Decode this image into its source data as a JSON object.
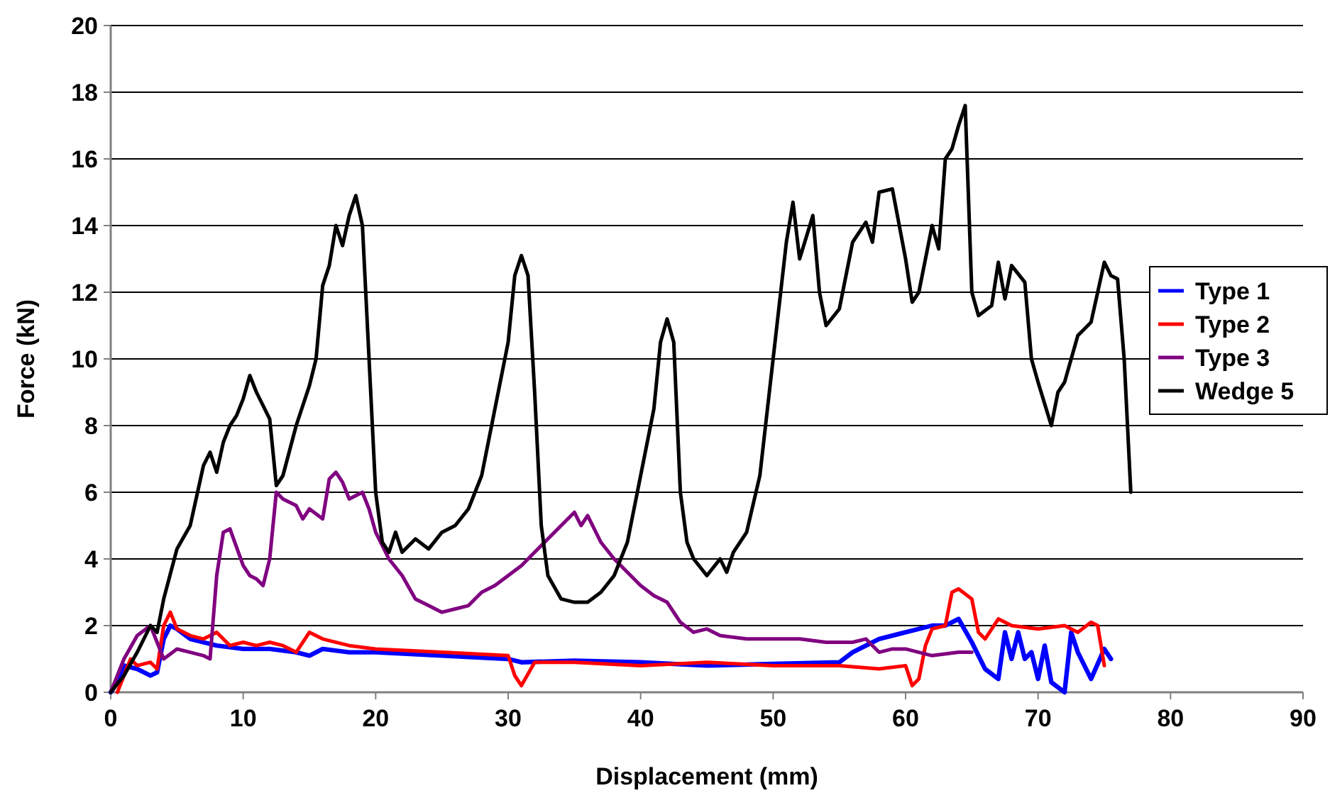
{
  "chart_data": {
    "type": "line",
    "xlabel": "Displacement (mm)",
    "ylabel": "Force (kN)",
    "xlim": [
      0,
      90
    ],
    "ylim": [
      0,
      20
    ],
    "xticks": [
      0,
      10,
      20,
      30,
      40,
      50,
      60,
      70,
      80,
      90
    ],
    "yticks": [
      0,
      2,
      4,
      6,
      8,
      10,
      12,
      14,
      16,
      18,
      20
    ],
    "grid": "y",
    "legend": "right",
    "marker": "none",
    "line_style": "solid",
    "series": [
      {
        "name": "Type 1",
        "color": "#0000ff",
        "x": [
          0,
          0.5,
          1,
          2,
          3,
          3.5,
          4,
          4.5,
          5,
          6,
          7,
          8,
          10,
          12,
          14,
          15,
          16,
          18,
          20,
          25,
          30,
          31,
          35,
          40,
          45,
          50,
          55,
          56,
          58,
          60,
          62,
          63,
          64,
          65,
          66,
          67,
          67.5,
          68,
          68.5,
          69,
          69.5,
          70,
          70.5,
          71,
          72,
          72.5,
          73,
          74,
          75,
          75.5
        ],
        "values": [
          0,
          0.3,
          0.8,
          0.7,
          0.5,
          0.6,
          1.6,
          2.0,
          1.9,
          1.6,
          1.5,
          1.4,
          1.3,
          1.3,
          1.2,
          1.1,
          1.3,
          1.2,
          1.2,
          1.1,
          1.0,
          0.9,
          0.95,
          0.9,
          0.8,
          0.85,
          0.9,
          1.2,
          1.6,
          1.8,
          2.0,
          2.0,
          2.2,
          1.5,
          0.7,
          0.4,
          1.8,
          1.0,
          1.8,
          1.0,
          1.2,
          0.4,
          1.4,
          0.3,
          0,
          1.8,
          1.2,
          0.4,
          1.3,
          1.0
        ]
      },
      {
        "name": "Type 2",
        "color": "#ff0000",
        "x": [
          0.5,
          1,
          1.5,
          2,
          3,
          3.5,
          4,
          4.5,
          5,
          6,
          7,
          8,
          9,
          10,
          11,
          12,
          13,
          14,
          15,
          16,
          18,
          20,
          25,
          30,
          30.5,
          31,
          32,
          35,
          40,
          45,
          50,
          55,
          58,
          60,
          60.5,
          61,
          61.5,
          62,
          63,
          63.5,
          64,
          65,
          65.5,
          66,
          67,
          68,
          70,
          72,
          73,
          74,
          74.5,
          75
        ],
        "values": [
          0,
          0.5,
          1.0,
          0.8,
          0.9,
          0.7,
          2.0,
          2.4,
          1.9,
          1.7,
          1.6,
          1.8,
          1.4,
          1.5,
          1.4,
          1.5,
          1.4,
          1.2,
          1.8,
          1.6,
          1.4,
          1.3,
          1.2,
          1.1,
          0.5,
          0.2,
          0.9,
          0.9,
          0.8,
          0.9,
          0.8,
          0.8,
          0.7,
          0.8,
          0.2,
          0.4,
          1.4,
          1.9,
          2.0,
          3.0,
          3.1,
          2.8,
          1.8,
          1.6,
          2.2,
          2.0,
          1.9,
          2.0,
          1.8,
          2.1,
          2.0,
          0.8
        ]
      },
      {
        "name": "Type 3",
        "color": "#800080",
        "x": [
          0,
          1,
          2,
          3,
          3.5,
          4,
          5,
          6,
          7,
          7.5,
          8,
          8.5,
          9,
          10,
          10.5,
          11,
          11.5,
          12,
          12.5,
          13,
          14,
          14.5,
          15,
          16,
          16.5,
          17,
          17.5,
          18,
          19,
          19.5,
          20,
          21,
          22,
          23,
          24,
          25,
          26,
          27,
          28,
          29,
          30,
          31,
          32,
          33,
          34,
          35,
          35.5,
          36,
          37,
          38,
          39,
          40,
          41,
          42,
          43,
          44,
          45,
          46,
          48,
          50,
          52,
          54,
          56,
          57,
          58,
          59,
          60,
          62,
          64,
          65
        ],
        "values": [
          0,
          1,
          1.7,
          2.0,
          1.5,
          1.0,
          1.3,
          1.2,
          1.1,
          1.0,
          3.5,
          4.8,
          4.9,
          3.8,
          3.5,
          3.4,
          3.2,
          4.0,
          6.0,
          5.8,
          5.6,
          5.2,
          5.5,
          5.2,
          6.4,
          6.6,
          6.3,
          5.8,
          6.0,
          5.5,
          4.8,
          4.0,
          3.5,
          2.8,
          2.6,
          2.4,
          2.5,
          2.6,
          3.0,
          3.2,
          3.5,
          3.8,
          4.2,
          4.6,
          5.0,
          5.4,
          5.0,
          5.3,
          4.5,
          4.0,
          3.6,
          3.2,
          2.9,
          2.7,
          2.1,
          1.8,
          1.9,
          1.7,
          1.6,
          1.6,
          1.6,
          1.5,
          1.5,
          1.6,
          1.2,
          1.3,
          1.3,
          1.1,
          1.2,
          1.2
        ]
      },
      {
        "name": "Wedge 5",
        "color": "#000000",
        "x": [
          0,
          1,
          2,
          3,
          3.5,
          4,
          5,
          6,
          7,
          7.5,
          8,
          8.5,
          9,
          9.5,
          10,
          10.5,
          11,
          12,
          12.5,
          13,
          14,
          15,
          15.5,
          16,
          16.5,
          17,
          17.5,
          18,
          18.5,
          19,
          19.5,
          20,
          20.5,
          21,
          21.5,
          22,
          23,
          24,
          25,
          26,
          27,
          28,
          29,
          30,
          30.5,
          31,
          31.5,
          32,
          32.5,
          33,
          34,
          35,
          36,
          37,
          38,
          39,
          40,
          41,
          41.5,
          42,
          42.5,
          43,
          43.5,
          44,
          45,
          46,
          46.5,
          47,
          48,
          49,
          50,
          51,
          51.5,
          52,
          53,
          53.5,
          54,
          55,
          56,
          57,
          57.5,
          58,
          59,
          60,
          60.5,
          61,
          62,
          62.5,
          63,
          63.5,
          64,
          64.5,
          65,
          65.5,
          66.5,
          67,
          67.5,
          68,
          69,
          69.5,
          70,
          71,
          71.5,
          72,
          73,
          74,
          75,
          75.5,
          76,
          76.5,
          77
        ],
        "values": [
          0,
          0.5,
          1.2,
          2.0,
          1.8,
          2.8,
          4.3,
          5.0,
          6.8,
          7.2,
          6.6,
          7.5,
          8.0,
          8.3,
          8.8,
          9.5,
          9.0,
          8.2,
          6.2,
          6.5,
          8.0,
          9.2,
          10.0,
          12.2,
          12.8,
          14.0,
          13.4,
          14.3,
          14.9,
          14.0,
          10,
          6.0,
          4.5,
          4.2,
          4.8,
          4.2,
          4.6,
          4.3,
          4.8,
          5.0,
          5.5,
          6.5,
          8.5,
          10.5,
          12.5,
          13.1,
          12.5,
          9,
          5,
          3.5,
          2.8,
          2.7,
          2.7,
          3.0,
          3.5,
          4.5,
          6.5,
          8.5,
          10.5,
          11.2,
          10.5,
          6,
          4.5,
          4.0,
          3.5,
          4.0,
          3.6,
          4.2,
          4.8,
          6.5,
          10,
          13.5,
          14.7,
          13.0,
          14.3,
          12.0,
          11.0,
          11.5,
          13.5,
          14.1,
          13.5,
          15.0,
          15.1,
          13.0,
          11.7,
          12.0,
          14.0,
          13.3,
          16.0,
          16.3,
          17.0,
          17.6,
          12.0,
          11.3,
          11.6,
          12.9,
          11.8,
          12.8,
          12.3,
          10,
          9.3,
          8.0,
          9,
          9.3,
          10.7,
          11.1,
          12.9,
          12.5,
          12.4,
          10,
          6.0
        ]
      }
    ]
  }
}
